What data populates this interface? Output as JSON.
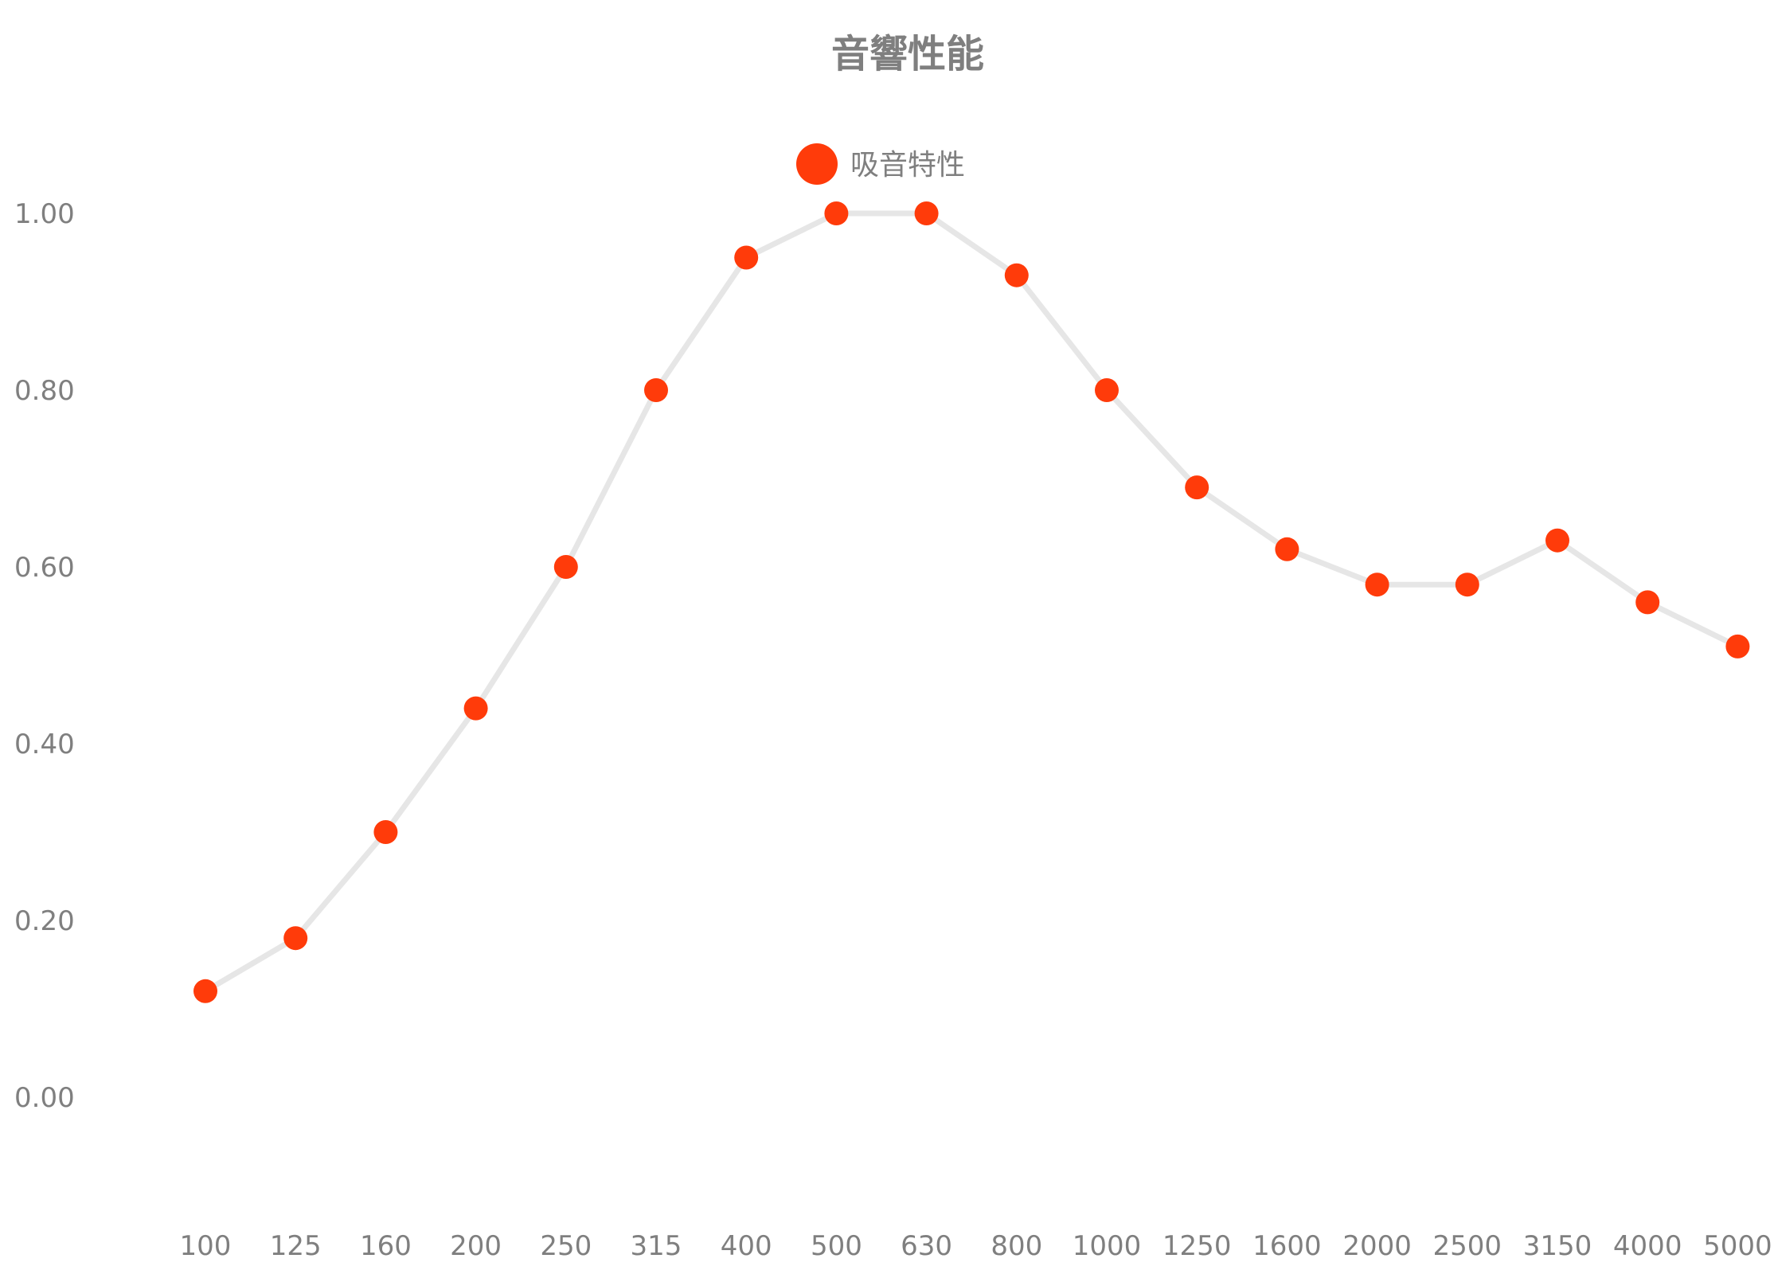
{
  "chart_data": {
    "type": "line",
    "title": "音響性能",
    "xlabel": "",
    "ylabel": "",
    "categories": [
      "100",
      "125",
      "160",
      "200",
      "250",
      "315",
      "400",
      "500",
      "630",
      "800",
      "1000",
      "1250",
      "1600",
      "2000",
      "2500",
      "3150",
      "4000",
      "5000"
    ],
    "series": [
      {
        "name": "吸音特性",
        "values": [
          0.12,
          0.18,
          0.3,
          0.44,
          0.6,
          0.8,
          0.95,
          1.0,
          1.0,
          0.93,
          0.8,
          0.69,
          0.62,
          0.58,
          0.58,
          0.63,
          0.56,
          0.51
        ]
      }
    ],
    "yticks": [
      "0.00",
      "0.20",
      "0.40",
      "0.60",
      "0.80",
      "1.00"
    ],
    "ylim": [
      -0.12,
      1.08
    ],
    "grid": false,
    "legend_position": "top-center",
    "colors": {
      "marker": "#ff3b0a",
      "line": "#e6e6e6",
      "text": "#7f7f7f"
    }
  }
}
